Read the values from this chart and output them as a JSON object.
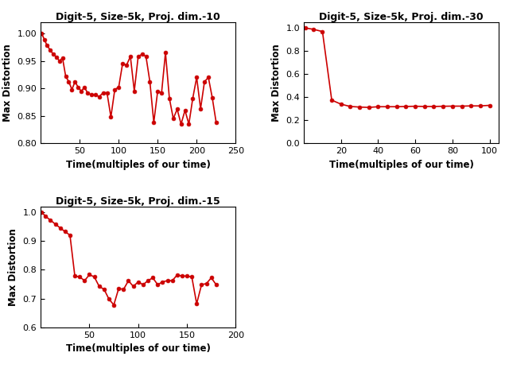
{
  "plot1": {
    "title": "Digit-5, Size-5k, Proj. dim.-10",
    "xlabel": "Time(multiples of our time)",
    "ylabel": "Max Distortion",
    "xlim": [
      0,
      250
    ],
    "ylim": [
      0.8,
      1.02
    ],
    "yticks": [
      0.8,
      0.85,
      0.9,
      0.95,
      1.0
    ],
    "xticks": [
      50,
      100,
      150,
      200,
      250
    ],
    "x": [
      1,
      5,
      8,
      12,
      16,
      20,
      24,
      28,
      32,
      36,
      40,
      44,
      48,
      52,
      56,
      60,
      65,
      70,
      75,
      80,
      85,
      90,
      95,
      100,
      105,
      110,
      115,
      120,
      125,
      130,
      135,
      140,
      145,
      150,
      155,
      160,
      165,
      170,
      175,
      180,
      185,
      190,
      195,
      200,
      205,
      210,
      215,
      220,
      225
    ],
    "y": [
      1.0,
      0.988,
      0.978,
      0.97,
      0.962,
      0.957,
      0.95,
      0.955,
      0.922,
      0.912,
      0.898,
      0.912,
      0.902,
      0.895,
      0.902,
      0.892,
      0.888,
      0.888,
      0.885,
      0.892,
      0.892,
      0.848,
      0.898,
      0.902,
      0.945,
      0.942,
      0.958,
      0.895,
      0.958,
      0.962,
      0.958,
      0.912,
      0.838,
      0.895,
      0.892,
      0.965,
      0.882,
      0.845,
      0.862,
      0.835,
      0.86,
      0.835,
      0.882,
      0.92,
      0.863,
      0.912,
      0.92,
      0.883,
      0.838
    ]
  },
  "plot2": {
    "title": "Digit-5, Size-5k, Proj. dim.-30",
    "xlabel": "Time(multiples of our time)",
    "ylabel": "Max Distortion",
    "xlim": [
      0,
      105
    ],
    "ylim": [
      0,
      1.05
    ],
    "yticks": [
      0,
      0.2,
      0.4,
      0.6,
      0.8,
      1.0
    ],
    "xticks": [
      20,
      40,
      60,
      80,
      100
    ],
    "x": [
      1,
      5,
      10,
      15,
      20,
      25,
      30,
      35,
      40,
      45,
      50,
      55,
      60,
      65,
      70,
      75,
      80,
      85,
      90,
      95,
      100
    ],
    "y": [
      1.0,
      0.99,
      0.97,
      0.375,
      0.34,
      0.32,
      0.315,
      0.312,
      0.318,
      0.318,
      0.318,
      0.32,
      0.322,
      0.32,
      0.32,
      0.322,
      0.323,
      0.323,
      0.325,
      0.325,
      0.33
    ]
  },
  "plot3": {
    "title": "Digit-5, Size-5k, Proj. dim.-15",
    "xlabel": "Time(multiples of our time)",
    "ylabel": "Max Distortion",
    "xlim": [
      0,
      200
    ],
    "ylim": [
      0.6,
      1.02
    ],
    "yticks": [
      0.6,
      0.7,
      0.8,
      0.9,
      1.0
    ],
    "xticks": [
      50,
      100,
      150,
      200
    ],
    "x": [
      1,
      5,
      10,
      15,
      20,
      25,
      30,
      35,
      40,
      45,
      50,
      55,
      60,
      65,
      70,
      75,
      80,
      85,
      90,
      95,
      100,
      105,
      110,
      115,
      120,
      125,
      130,
      135,
      140,
      145,
      150,
      155,
      160,
      165,
      170,
      175,
      180
    ],
    "y": [
      1.0,
      0.985,
      0.972,
      0.958,
      0.945,
      0.932,
      0.92,
      0.778,
      0.775,
      0.762,
      0.783,
      0.775,
      0.742,
      0.732,
      0.698,
      0.678,
      0.735,
      0.732,
      0.762,
      0.742,
      0.758,
      0.748,
      0.762,
      0.772,
      0.748,
      0.758,
      0.762,
      0.762,
      0.782,
      0.778,
      0.778,
      0.775,
      0.682,
      0.748,
      0.752,
      0.772,
      0.748
    ]
  },
  "color": "#cc0000",
  "linewidth": 1.2,
  "markersize": 3.5,
  "title_fontsize": 9,
  "label_fontsize": 8.5,
  "tick_fontsize": 8,
  "title_fontweight": "bold",
  "label_fontweight": "bold"
}
